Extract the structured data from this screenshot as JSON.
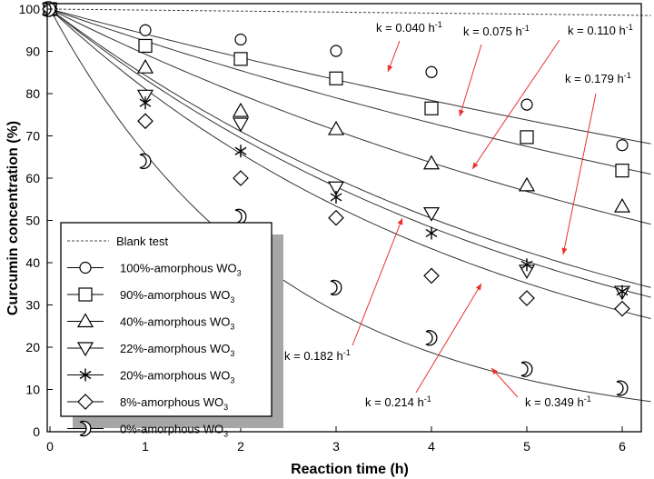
{
  "chart_data": {
    "type": "scatter",
    "title": "",
    "xlabel": "Reaction time (h)",
    "ylabel": "Curcumin concentration (%)",
    "xlim": [
      0,
      6.3
    ],
    "ylim": [
      0,
      100
    ],
    "xticks": [
      0,
      1,
      2,
      3,
      4,
      5,
      6
    ],
    "yticks": [
      0,
      10,
      20,
      30,
      40,
      50,
      60,
      70,
      80,
      90,
      100
    ],
    "grid": false,
    "legend_position": "lower-left",
    "series": [
      {
        "name": "Blank test",
        "marker": "none",
        "line": "dashed",
        "x": [
          0,
          6.3
        ],
        "y": [
          100,
          98.5
        ]
      },
      {
        "name": "100%-amorphous WO",
        "name_sub": "3",
        "marker": "circle",
        "k_label": "k = 0.040 h",
        "k_sup": "-1",
        "x": [
          0,
          1,
          2,
          3,
          4,
          5,
          6
        ],
        "y": [
          100,
          95,
          92.8,
          90.1,
          85.1,
          77.4,
          67.8
        ]
      },
      {
        "name": "90%-amorphous WO",
        "name_sub": "3",
        "marker": "square",
        "k_label": "k = 0.075 h",
        "k_sup": "-1",
        "x": [
          0,
          1,
          2,
          3,
          4,
          5,
          6
        ],
        "y": [
          100,
          91.3,
          88.2,
          83.6,
          76.5,
          69.7,
          61.8
        ]
      },
      {
        "name": "40%-amorphous WO",
        "name_sub": "3",
        "marker": "triangle-up",
        "k_label": "k = 0.110 h",
        "k_sup": "-1",
        "x": [
          0,
          1,
          2,
          3,
          4,
          5,
          6
        ],
        "y": [
          100,
          86.2,
          75.9,
          71.6,
          63.5,
          58.3,
          53.3
        ]
      },
      {
        "name": "22%-amorphous WO",
        "name_sub": "3",
        "marker": "triangle-down",
        "k_label": "k = 0.179 h",
        "k_sup": "-1",
        "x": [
          0,
          1,
          2,
          3,
          4,
          5,
          6
        ],
        "y": [
          100,
          79.5,
          72.9,
          57.8,
          51.7,
          38.1,
          33.1
        ]
      },
      {
        "name": "20%-amorphous WO",
        "name_sub": "3",
        "marker": "asterisk",
        "k_label": "k = 0.182 h",
        "k_sup": "-1",
        "x": [
          0,
          1,
          2,
          3,
          4,
          5,
          6
        ],
        "y": [
          100,
          77.8,
          66.4,
          55.5,
          47.0,
          39.5,
          33.2
        ]
      },
      {
        "name": "8%-amorphous WO",
        "name_sub": "3",
        "marker": "diamond",
        "k_label": "k = 0.214 h",
        "k_sup": "-1",
        "x": [
          0,
          1,
          2,
          3,
          4,
          5,
          6
        ],
        "y": [
          100,
          73.5,
          60.0,
          50.6,
          36.9,
          31.6,
          29.1
        ]
      },
      {
        "name": "0%-amorphous WO",
        "name_sub": "3",
        "marker": "crescent",
        "k_label": "k = 0.349 h",
        "k_sup": "-1",
        "x": [
          0,
          1,
          2,
          3,
          4,
          5,
          6
        ],
        "y": [
          100,
          64.0,
          50.9,
          34.1,
          22.2,
          14.8,
          10.3
        ]
      }
    ],
    "fit_curves": [
      {
        "for": "100%-amorphous WO3",
        "y0": 100,
        "y_end": 69.4
      },
      {
        "for": "90%-amorphous WO3",
        "y0": 100,
        "y_end": 62.4
      },
      {
        "for": "40%-amorphous WO3",
        "y0": 100,
        "y_end": 50.8
      },
      {
        "for": "22%-amorphous WO3",
        "y0": 100,
        "y_end": 35.9
      },
      {
        "for": "20%-amorphous WO3",
        "y0": 100,
        "y_end": 33.6
      },
      {
        "for": "8%-amorphous WO3",
        "y0": 100,
        "y_end": 28.5
      },
      {
        "for": "0%-amorphous WO3",
        "y0": 100,
        "y_end": 8.1
      }
    ]
  }
}
